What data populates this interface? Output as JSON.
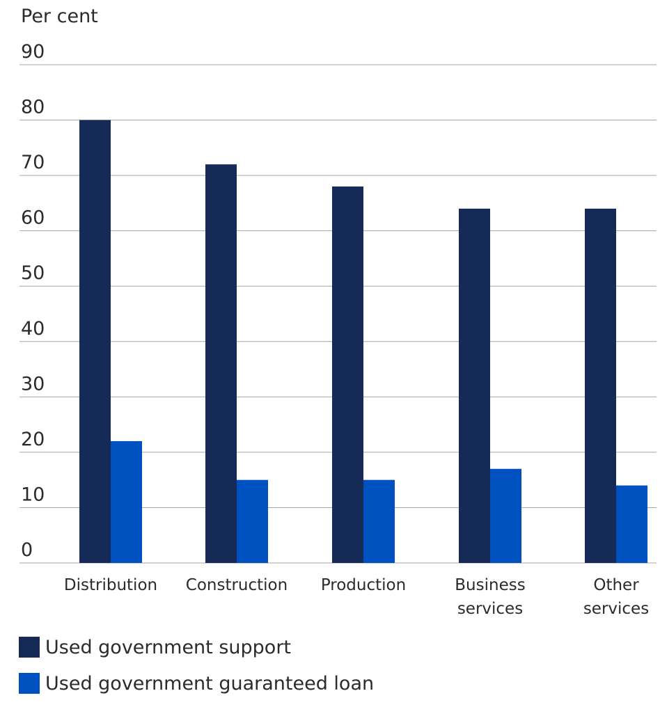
{
  "chart_data": {
    "type": "bar",
    "ylabel": "Per cent",
    "ylim": [
      0,
      90
    ],
    "yticks": [
      0,
      10,
      20,
      30,
      40,
      50,
      60,
      70,
      80,
      90
    ],
    "grid": true,
    "legend_position": "bottom-left",
    "categories": [
      [
        "Distribution"
      ],
      [
        "Construction"
      ],
      [
        "Production"
      ],
      [
        "Business",
        "services"
      ],
      [
        "Other",
        "services"
      ]
    ],
    "series": [
      {
        "name": "Used government support",
        "color": "#162a57",
        "values": [
          80,
          72,
          68,
          64,
          64
        ]
      },
      {
        "name": "Used government guaranteed loan",
        "color": "#0051c0",
        "values": [
          22,
          15,
          15,
          17,
          14
        ]
      }
    ]
  }
}
